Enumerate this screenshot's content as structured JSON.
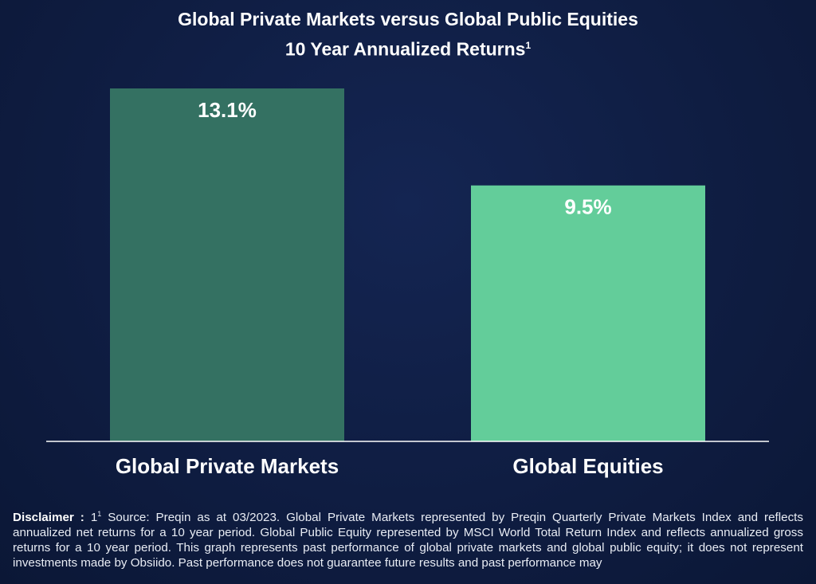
{
  "chart_data": {
    "type": "bar",
    "title": "Global Private Markets versus Global Public Equities",
    "subtitle": "10 Year Annualized Returns",
    "subtitle_footnote": "1",
    "categories": [
      "Global Private Markets",
      "Global Equities"
    ],
    "values": [
      13.1,
      9.5
    ],
    "value_labels": [
      "13.1%",
      "9.5%"
    ],
    "colors": [
      "#347162",
      "#63cd9a"
    ],
    "ylim": [
      0,
      13.1
    ],
    "grid": false,
    "axis_color": "#ffffff"
  },
  "disclaimer": {
    "label": "Disclaimer :",
    "marker": "1",
    "footnote_marker": "1",
    "text": "Source: Preqin as at 03/2023. Global Private Markets represented by Preqin Quarterly Private Markets Index and reflects annualized net returns for a 10 year period. Global Public Equity represented by MSCI World Total Return Index and reflects annualized gross returns for a 10 year period. This graph represents past performance of global private markets and global public equity; it does not represent investments made by Obsiido. Past performance does not guarantee future results and past performance may"
  }
}
